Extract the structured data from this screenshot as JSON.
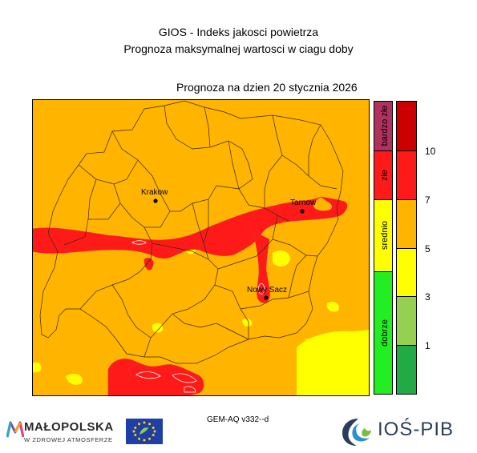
{
  "header": {
    "line1": "GIOS - Indeks jakosci powietrza",
    "line2": "Prognoza maksymalnej wartosci w ciagu doby",
    "forecast_date": "Prognoza na dzien  20 stycznia 2026"
  },
  "map": {
    "cities": [
      {
        "name": "Krakow"
      },
      {
        "name": "Tarnow"
      },
      {
        "name": "Nowy Sacz"
      }
    ]
  },
  "legend": {
    "categories": [
      {
        "label": "bardzo złe",
        "color": "#b0305e"
      },
      {
        "label": "złe",
        "color": "#ff1a1a"
      },
      {
        "label": "srednio",
        "color": "#ffff00"
      },
      {
        "label": "dobrze",
        "color": "#22ee22"
      }
    ],
    "scale_colors": [
      "#cc0000",
      "#ff1a1a",
      "#ffb400",
      "#ffff00",
      "#96d050",
      "#22aa44"
    ],
    "scale_ticks": [
      "10",
      "7",
      "5",
      "3",
      "1"
    ]
  },
  "footer": {
    "model": "GEM-AQ v332--d",
    "malopolska_name": "MAŁOPOLSKA",
    "malopolska_sub": "W ZDROWEJ ATMOSFERZE",
    "ios_name": "IOŚ-PIB"
  }
}
